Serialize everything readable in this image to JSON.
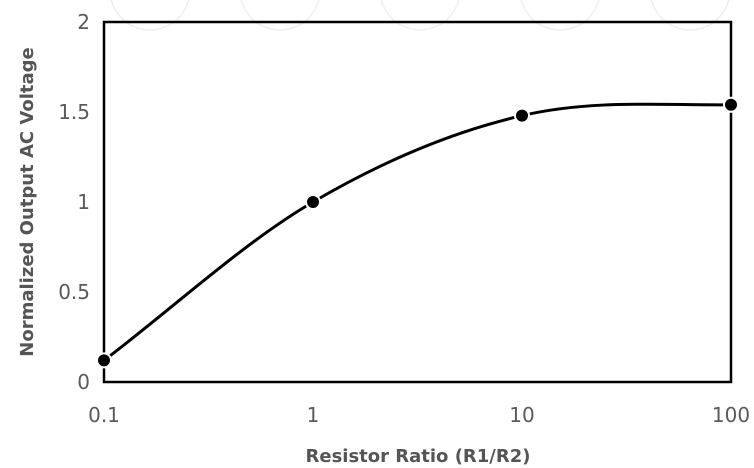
{
  "chart_data": {
    "type": "line",
    "xscale": "log",
    "x": [
      0.1,
      1,
      10,
      100
    ],
    "series": [
      {
        "values": [
          0.12,
          1.0,
          1.48,
          1.54
        ]
      }
    ],
    "smooth": true,
    "markers": "circle",
    "xlim": [
      0.1,
      100
    ],
    "ylim": [
      0,
      2
    ],
    "xticks": [
      "0.1",
      "1",
      "10",
      "100"
    ],
    "yticks": [
      "0",
      "0.5",
      "1",
      "1.5",
      "2"
    ],
    "xlabel": "Resistor Ratio (R1/R2)",
    "ylabel": "Normalized Output AC Voltage",
    "grid": false,
    "legend": "none",
    "line_color": "#000000",
    "marker_color": "#000000"
  }
}
